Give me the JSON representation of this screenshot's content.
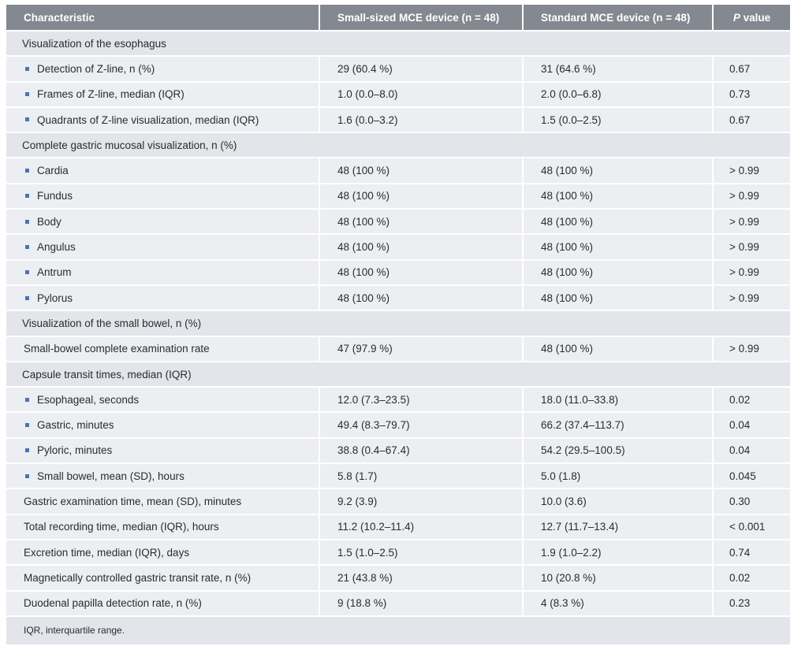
{
  "header": {
    "characteristic": "Characteristic",
    "small_device": "Small-sized MCE device (n = 48)",
    "standard_device": "Standard MCE device (n = 48)",
    "p_value_p": "P",
    "p_value_rest": " value"
  },
  "rows": [
    {
      "type": "section",
      "label": "Visualization of the esophagus"
    },
    {
      "type": "sub",
      "label": "Detection of Z-line, n (%)",
      "small": "29 (60.4 %)",
      "standard": "31 (64.6 %)",
      "p": "0.67"
    },
    {
      "type": "sub",
      "label": "Frames of Z-line, median (IQR)",
      "small": "1.0 (0.0–8.0)",
      "standard": "2.0 (0.0–6.8)",
      "p": "0.73"
    },
    {
      "type": "sub",
      "label": "Quadrants of Z-line visualization, median (IQR)",
      "small": "1.6 (0.0–3.2)",
      "standard": "1.5 (0.0–2.5)",
      "p": "0.67"
    },
    {
      "type": "section",
      "label": "Complete gastric mucosal visualization, n (%)"
    },
    {
      "type": "sub",
      "label": "Cardia",
      "small": "48 (100 %)",
      "standard": "48 (100 %)",
      "p": "> 0.99"
    },
    {
      "type": "sub",
      "label": "Fundus",
      "small": "48 (100 %)",
      "standard": "48 (100 %)",
      "p": "> 0.99"
    },
    {
      "type": "sub",
      "label": "Body",
      "small": "48 (100 %)",
      "standard": "48 (100 %)",
      "p": "> 0.99"
    },
    {
      "type": "sub",
      "label": "Angulus",
      "small": "48 (100 %)",
      "standard": "48 (100 %)",
      "p": "> 0.99"
    },
    {
      "type": "sub",
      "label": "Antrum",
      "small": "48 (100 %)",
      "standard": "48 (100 %)",
      "p": "> 0.99"
    },
    {
      "type": "sub",
      "label": "Pylorus",
      "small": "48 (100 %)",
      "standard": "48 (100 %)",
      "p": "> 0.99"
    },
    {
      "type": "section",
      "label": "Visualization of the small bowel, n (%)"
    },
    {
      "type": "plain",
      "label": "Small-bowel complete examination rate",
      "small": "47 (97.9 %)",
      "standard": "48 (100 %)",
      "p": "> 0.99"
    },
    {
      "type": "section",
      "label": "Capsule transit times, median (IQR)"
    },
    {
      "type": "sub",
      "label": "Esophageal, seconds",
      "small": "12.0 (7.3–23.5)",
      "standard": "18.0 (11.0–33.8)",
      "p": "0.02"
    },
    {
      "type": "sub",
      "label": "Gastric, minutes",
      "small": "49.4 (8.3–79.7)",
      "standard": "66.2 (37.4–113.7)",
      "p": "0.04"
    },
    {
      "type": "sub",
      "label": "Pyloric, minutes",
      "small": "38.8 (0.4–67.4)",
      "standard": "54.2 (29.5–100.5)",
      "p": "0.04"
    },
    {
      "type": "sub",
      "label": "Small bowel, mean (SD), hours",
      "small": "5.8 (1.7)",
      "standard": "5.0 (1.8)",
      "p": "0.045"
    },
    {
      "type": "plain",
      "label": "Gastric examination time, mean (SD), minutes",
      "small": "9.2 (3.9)",
      "standard": "10.0 (3.6)",
      "p": "0.30"
    },
    {
      "type": "plain",
      "label": "Total recording time, median (IQR), hours",
      "small": "11.2 (10.2–11.4)",
      "standard": "12.7 (11.7–13.4)",
      "p": "< 0.001"
    },
    {
      "type": "plain",
      "label": "Excretion time, median (IQR), days",
      "small": "1.5 (1.0–2.5)",
      "standard": "1.9 (1.0–2.2)",
      "p": "0.74"
    },
    {
      "type": "plain",
      "label": "Magnetically controlled gastric transit rate, n (%)",
      "small": "21 (43.8 %)",
      "standard": "10 (20.8 %)",
      "p": "0.02"
    },
    {
      "type": "plain",
      "label": "Duodenal papilla detection rate, n (%)",
      "small": "9 (18.8 %)",
      "standard": "4 (8.3 %)",
      "p": "0.23"
    }
  ],
  "footnote": "IQR, interquartile range.",
  "colors": {
    "header_bg": "#848890",
    "row_bg": "#eceef2",
    "section_bg": "#e3e5ea",
    "bullet": "#4a73b5"
  }
}
